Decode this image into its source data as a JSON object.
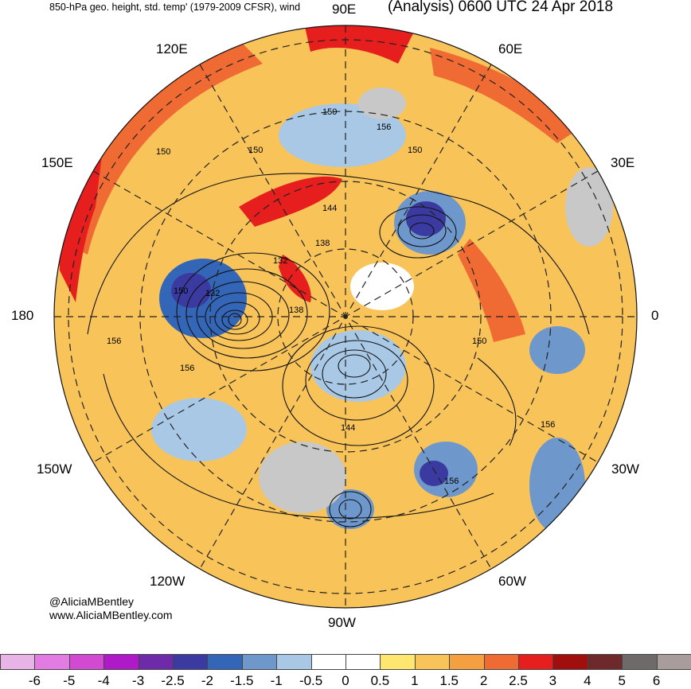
{
  "header": {
    "left_title": "850-hPa geo. height, std. temp' (1979-2009 CFSR), wind",
    "right_title": "(Analysis) 0600 UTC 24 Apr 2018"
  },
  "credits": {
    "handle": "@AliciaMBentley",
    "site": "www.AliciaMBentley.com"
  },
  "longitude_labels": {
    "lon_90e": "90E",
    "lon_60e": "60E",
    "lon_120e": "120E",
    "lon_30e": "30E",
    "lon_150e": "150E",
    "lon_0": "0",
    "lon_180": "180",
    "lon_30w": "30W",
    "lon_150w": "150W",
    "lon_60w": "60W",
    "lon_120w": "120W",
    "lon_90w": "90W"
  },
  "contour_labels": {
    "c1": "150",
    "c2": "156",
    "c3": "150",
    "c4": "150",
    "c5": "150",
    "c6": "144",
    "c7": "138",
    "c8": "132",
    "c9": "132",
    "c10": "150",
    "c11": "138",
    "c12": "156",
    "c13": "150",
    "c14": "156",
    "c15": "156",
    "c16": "144",
    "c17": "156"
  },
  "colorbar": {
    "colors": [
      "#e8b4e8",
      "#e27ce2",
      "#d24ad2",
      "#b019c8",
      "#6e2aa8",
      "#3a3aa0",
      "#3466b8",
      "#6e98cc",
      "#a8c8e6",
      "#ffffff",
      "#ffffff",
      "#ffe66e",
      "#f8c45a",
      "#f4a040",
      "#f06a34",
      "#e61e1e",
      "#a00e0e",
      "#6e2a2a",
      "#6e6a6a",
      "#a89c9c"
    ],
    "ticks": {
      "t1": "-6",
      "t2": "-5",
      "t3": "-4",
      "t4": "-3",
      "t5": "-2.5",
      "t6": "-2",
      "t7": "-1.5",
      "t8": "-1",
      "t9": "-0.5",
      "t10": "0",
      "t11": "0.5",
      "t12": "1",
      "t13": "1.5",
      "t14": "2",
      "t15": "2.5",
      "t16": "3",
      "t17": "4",
      "t18": "5",
      "t19": "6"
    }
  }
}
